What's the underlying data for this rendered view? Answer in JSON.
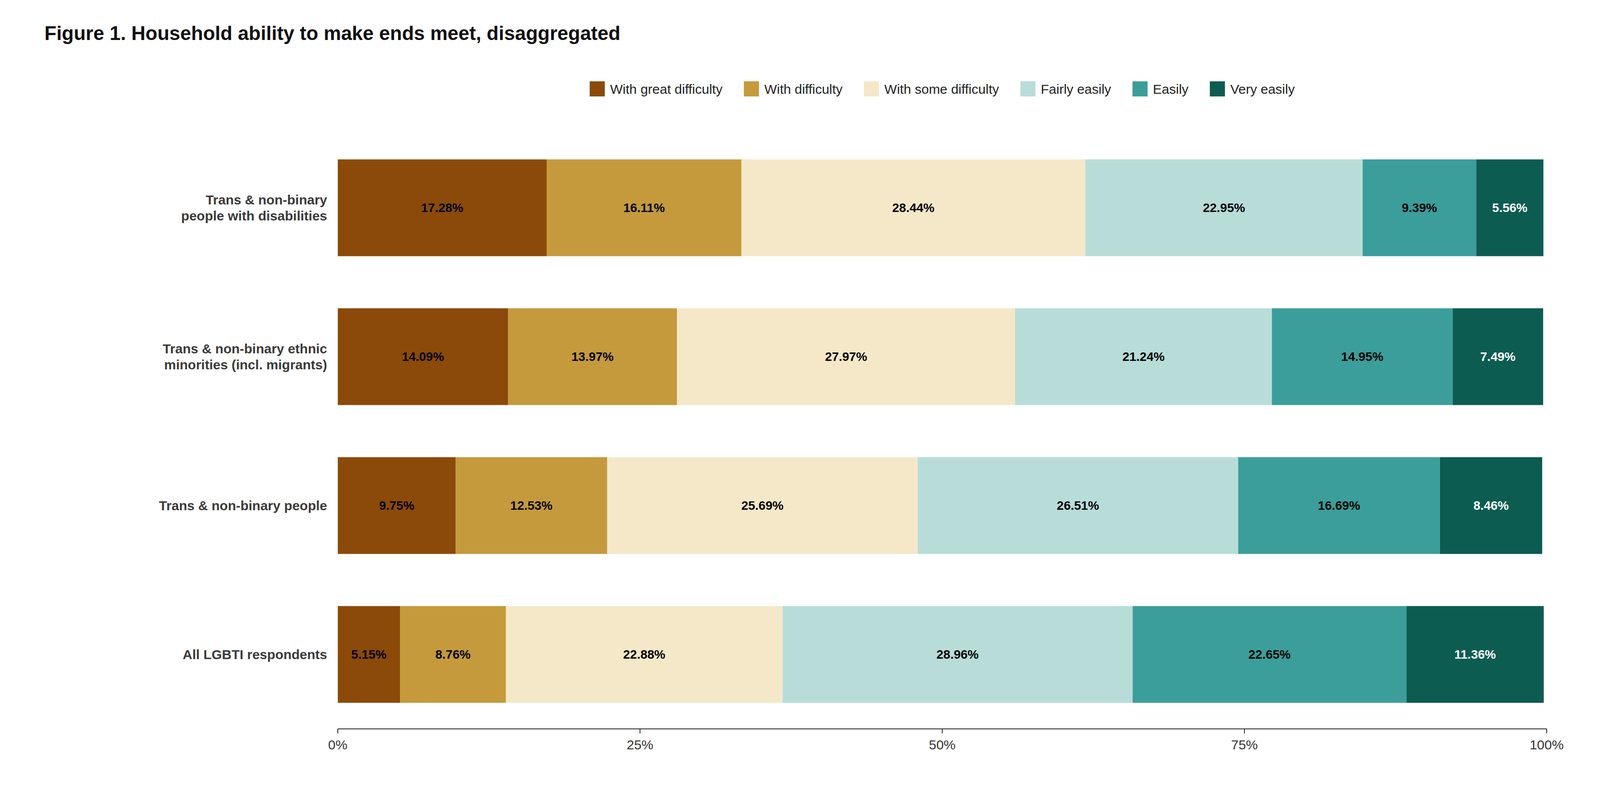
{
  "chart_data": {
    "type": "bar",
    "orientation": "horizontal",
    "stacked": true,
    "data_labels": true,
    "grid": false,
    "legend": "top",
    "title": "Figure 1. Household ability to make ends meet, disaggregated",
    "categories": [
      "Trans & non-binary\npeople with disabilities",
      "Trans & non-binary ethnic\nminorities (incl. migrants)",
      "Trans & non-binary people",
      "All LGBTI respondents"
    ],
    "xlim": [
      0,
      100
    ],
    "xticks": [
      {
        "value": 0,
        "label": "0%"
      },
      {
        "value": 25,
        "label": "25%"
      },
      {
        "value": 50,
        "label": "50%"
      },
      {
        "value": 75,
        "label": "75%"
      },
      {
        "value": 100,
        "label": "100%"
      }
    ],
    "series": [
      {
        "name": "With great difficulty",
        "color": "#8B4A0A",
        "values": [
          17.28,
          14.09,
          9.75,
          5.15
        ],
        "value_labels": [
          "17.28%",
          "14.09%",
          "9.75%",
          "5.15%"
        ]
      },
      {
        "name": "With difficulty",
        "color": "#C49A3C",
        "values": [
          16.11,
          13.97,
          12.53,
          8.76
        ],
        "value_labels": [
          "16.11%",
          "13.97%",
          "12.53%",
          "8.76%"
        ]
      },
      {
        "name": "With some difficulty",
        "color": "#F5E8C8",
        "values": [
          28.44,
          27.97,
          25.69,
          22.88
        ],
        "value_labels": [
          "28.44%",
          "27.97%",
          "25.69%",
          "22.88%"
        ]
      },
      {
        "name": "Fairly easily",
        "color": "#B8DDD8",
        "values": [
          22.95,
          21.24,
          26.51,
          28.96
        ],
        "value_labels": [
          "22.95%",
          "21.24%",
          "26.51%",
          "28.96%"
        ]
      },
      {
        "name": "Easily",
        "color": "#3B9E9A",
        "values": [
          9.39,
          14.95,
          16.69,
          22.65
        ],
        "value_labels": [
          "9.39%",
          "14.95%",
          "16.69%",
          "22.65%"
        ]
      },
      {
        "name": "Very easily",
        "color": "#0D5C52",
        "values": [
          5.56,
          7.49,
          8.46,
          11.36
        ],
        "value_labels": [
          "5.56%",
          "7.49%",
          "8.46%",
          "11.36%"
        ]
      }
    ]
  }
}
